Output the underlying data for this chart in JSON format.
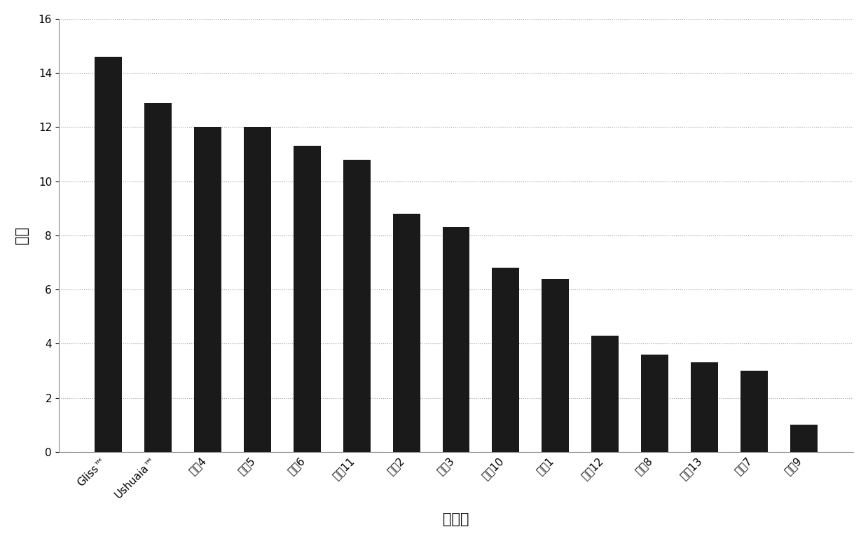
{
  "categories": [
    "Gliss™",
    "Ushuaia™",
    "滑眳4",
    "滑眳5",
    "滑眳6",
    "滑眳11",
    "滑眳2",
    "滑眳3",
    "滑眳10",
    "滑眳1",
    "滑眳12",
    "滑眳8",
    "滑眳13",
    "滑眳7",
    "滑眳9"
  ],
  "values": [
    14.6,
    12.9,
    12.0,
    12.0,
    11.3,
    10.8,
    8.8,
    8.3,
    6.8,
    6.4,
    4.3,
    3.6,
    3.3,
    3.0,
    1.0
  ],
  "bar_color": "#1a1a1a",
  "xlabel": "组合物",
  "ylabel": "等级",
  "ylim": [
    0,
    16
  ],
  "yticks": [
    0,
    2,
    4,
    6,
    8,
    10,
    12,
    14,
    16
  ],
  "grid_color": "#999999",
  "background_color": "#ffffff",
  "xlabel_fontsize": 15,
  "ylabel_fontsize": 15,
  "tick_fontsize": 11,
  "bar_width": 0.55
}
